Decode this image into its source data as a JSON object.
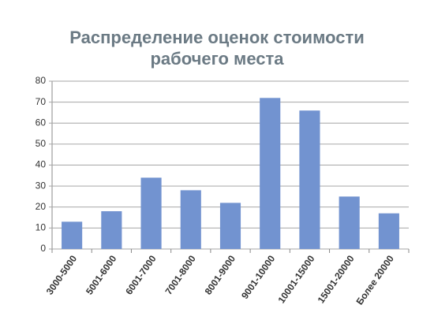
{
  "chart_data": {
    "type": "bar",
    "title": "Распределение оценок стоимости рабочего места",
    "categories": [
      "3000-5000",
      "5001-6000",
      "6001-7000",
      "7001-8000",
      "8001-9000",
      "9001-10000",
      "10001-15000",
      "15001-20000",
      "Более 20000"
    ],
    "values": [
      13,
      18,
      34,
      28,
      22,
      72,
      66,
      25,
      17
    ],
    "color": "#7293d0",
    "ylim": [
      0,
      80
    ],
    "yticks": [
      0,
      10,
      20,
      30,
      40,
      50,
      60,
      70,
      80
    ],
    "grid": true
  }
}
